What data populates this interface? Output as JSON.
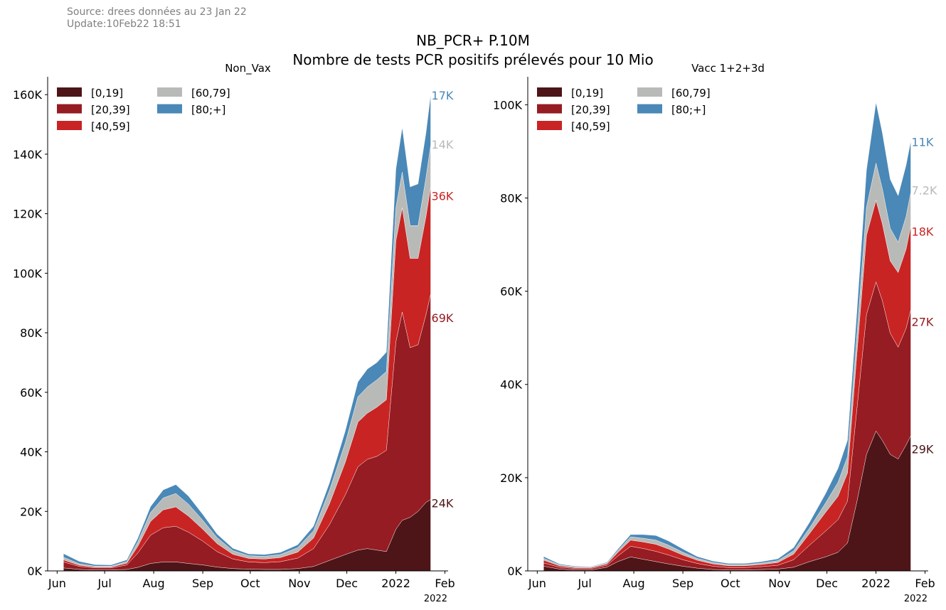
{
  "header": {
    "source": "Source: drees données au 23 Jan 22",
    "update": "Update:10Feb22 18:51",
    "title_line1": "NB_PCR+ P.10M",
    "title_line2": "Nombre de tests PCR positifs prélevés pour 10 Mio"
  },
  "colors": {
    "[0,19]": "#4e1518",
    "[20,39]": "#951c22",
    "[40,59]": "#c82423",
    "[60,79]": "#b8bab8",
    "[80;+]": "#4a88b7"
  },
  "chart_data": [
    {
      "type": "area",
      "stacked": true,
      "title": "Non_Vax",
      "x_tick_labels": [
        "Jun",
        "Jul",
        "Aug",
        "Sep",
        "Oct",
        "Nov",
        "Dec",
        "2022",
        "Feb"
      ],
      "x_axis_note": "2022",
      "x_dates": [
        "2021-06-05",
        "2021-06-15",
        "2021-06-25",
        "2021-07-05",
        "2021-07-15",
        "2021-07-22",
        "2021-07-30",
        "2021-08-07",
        "2021-08-15",
        "2021-08-23",
        "2021-09-01",
        "2021-09-10",
        "2021-09-20",
        "2021-09-30",
        "2021-10-10",
        "2021-10-20",
        "2021-10-31",
        "2021-11-10",
        "2021-11-20",
        "2021-11-30",
        "2021-12-08",
        "2021-12-14",
        "2021-12-20",
        "2021-12-26",
        "2022-01-01",
        "2022-01-05",
        "2022-01-10",
        "2022-01-15",
        "2022-01-20",
        "2022-01-23"
      ],
      "ylim": [
        0,
        166000
      ],
      "y_tick_labels": [
        "0K",
        "20K",
        "40K",
        "60K",
        "80K",
        "100K",
        "120K",
        "140K",
        "160K"
      ],
      "grid": false,
      "legend_position": "top-left",
      "series": [
        {
          "name": "[0,19]",
          "end_label": "24K",
          "values": [
            1000,
            500,
            300,
            300,
            500,
            1200,
            2500,
            3000,
            3000,
            2500,
            2000,
            1300,
            800,
            600,
            500,
            500,
            800,
            1500,
            3500,
            5500,
            7000,
            7500,
            7000,
            6500,
            14000,
            17000,
            18000,
            20000,
            23000,
            24000
          ]
        },
        {
          "name": "[20,39]",
          "end_label": "69K",
          "values": [
            2000,
            1000,
            700,
            700,
            1500,
            4800,
            9500,
            11500,
            12000,
            10500,
            8000,
            5200,
            3200,
            2400,
            2300,
            2600,
            3500,
            6000,
            12000,
            20000,
            28000,
            30000,
            31500,
            34000,
            63000,
            70000,
            57000,
            56000,
            63000,
            69000
          ]
        },
        {
          "name": "[40,59]",
          "end_label": "36K",
          "values": [
            700,
            400,
            300,
            300,
            600,
            2300,
            4600,
            6000,
            6500,
            5400,
            4000,
            2700,
            1600,
            1200,
            1200,
            1400,
            2000,
            3500,
            7000,
            11000,
            15000,
            15500,
            16500,
            17000,
            34000,
            35000,
            30000,
            29000,
            33000,
            36000
          ]
        },
        {
          "name": "[60,79]",
          "end_label": "14K",
          "values": [
            900,
            500,
            300,
            300,
            500,
            1500,
            3000,
            4000,
            4500,
            4000,
            3000,
            2000,
            1200,
            900,
            900,
            1000,
            1500,
            2500,
            4500,
            6500,
            8500,
            8800,
            9200,
            9500,
            11000,
            12000,
            11000,
            11000,
            13000,
            14000
          ]
        },
        {
          "name": "[80;+]",
          "end_label": "17K",
          "values": [
            1200,
            800,
            500,
            400,
            600,
            1200,
            2000,
            2700,
            3000,
            2700,
            2000,
            1200,
            800,
            600,
            600,
            700,
            1000,
            1500,
            2500,
            4000,
            5000,
            6000,
            5800,
            6500,
            13000,
            15000,
            13000,
            14000,
            15000,
            17000
          ]
        }
      ]
    },
    {
      "type": "area",
      "stacked": true,
      "title": "Vacc 1+2+3d",
      "x_tick_labels": [
        "Jun",
        "Jul",
        "Aug",
        "Sep",
        "Oct",
        "Nov",
        "Dec",
        "2022",
        "Feb"
      ],
      "x_axis_note": "2022",
      "x_dates": [
        "2021-06-05",
        "2021-06-15",
        "2021-06-25",
        "2021-07-05",
        "2021-07-15",
        "2021-07-22",
        "2021-07-30",
        "2021-08-07",
        "2021-08-15",
        "2021-08-23",
        "2021-09-01",
        "2021-09-10",
        "2021-09-20",
        "2021-09-30",
        "2021-10-10",
        "2021-10-20",
        "2021-10-31",
        "2021-11-10",
        "2021-11-20",
        "2021-11-30",
        "2021-12-08",
        "2021-12-14",
        "2021-12-20",
        "2021-12-26",
        "2022-01-01",
        "2022-01-05",
        "2022-01-10",
        "2022-01-15",
        "2022-01-20",
        "2022-01-23"
      ],
      "ylim": [
        0,
        106000
      ],
      "y_tick_labels": [
        "0K",
        "20K",
        "40K",
        "60K",
        "80K",
        "100K"
      ],
      "grid": false,
      "legend_position": "top-left",
      "series": [
        {
          "name": "[0,19]",
          "end_label": "29K",
          "values": [
            1000,
            400,
            200,
            200,
            800,
            2000,
            3000,
            2500,
            2000,
            1500,
            1000,
            600,
            300,
            200,
            200,
            300,
            400,
            800,
            2000,
            3000,
            4000,
            6000,
            15000,
            25000,
            30000,
            28000,
            25000,
            24000,
            27000,
            29000
          ]
        },
        {
          "name": "[20,39]",
          "end_label": "27K",
          "values": [
            700,
            400,
            300,
            300,
            400,
            1200,
            2300,
            2300,
            2200,
            1900,
            1400,
            1000,
            700,
            500,
            500,
            600,
            800,
            1600,
            3500,
            5500,
            7000,
            9000,
            20000,
            30000,
            32000,
            30000,
            26000,
            24000,
            25000,
            27000
          ]
        },
        {
          "name": "[40,59]",
          "end_label": "18K",
          "values": [
            600,
            300,
            200,
            200,
            300,
            800,
            1300,
            1400,
            1500,
            1300,
            1000,
            700,
            500,
            400,
            400,
            450,
            600,
            1200,
            2500,
            4000,
            5000,
            6000,
            12000,
            17000,
            17500,
            16500,
            15500,
            16000,
            17000,
            18000
          ]
        },
        {
          "name": "[60,79]",
          "end_label": "7.2K",
          "values": [
            400,
            200,
            150,
            150,
            200,
            400,
            700,
            800,
            900,
            800,
            600,
            400,
            300,
            250,
            250,
            300,
            400,
            700,
            1200,
            2000,
            3000,
            3500,
            4000,
            6000,
            8000,
            7500,
            7000,
            6500,
            7000,
            7200
          ]
        },
        {
          "name": "[80;+]",
          "end_label": "11K",
          "values": [
            400,
            200,
            150,
            100,
            150,
            300,
            500,
            800,
            1000,
            900,
            700,
            400,
            300,
            250,
            250,
            300,
            400,
            700,
            1200,
            2000,
            3000,
            3500,
            5000,
            8000,
            13000,
            12000,
            10500,
            10000,
            11000,
            11000
          ]
        }
      ]
    }
  ]
}
